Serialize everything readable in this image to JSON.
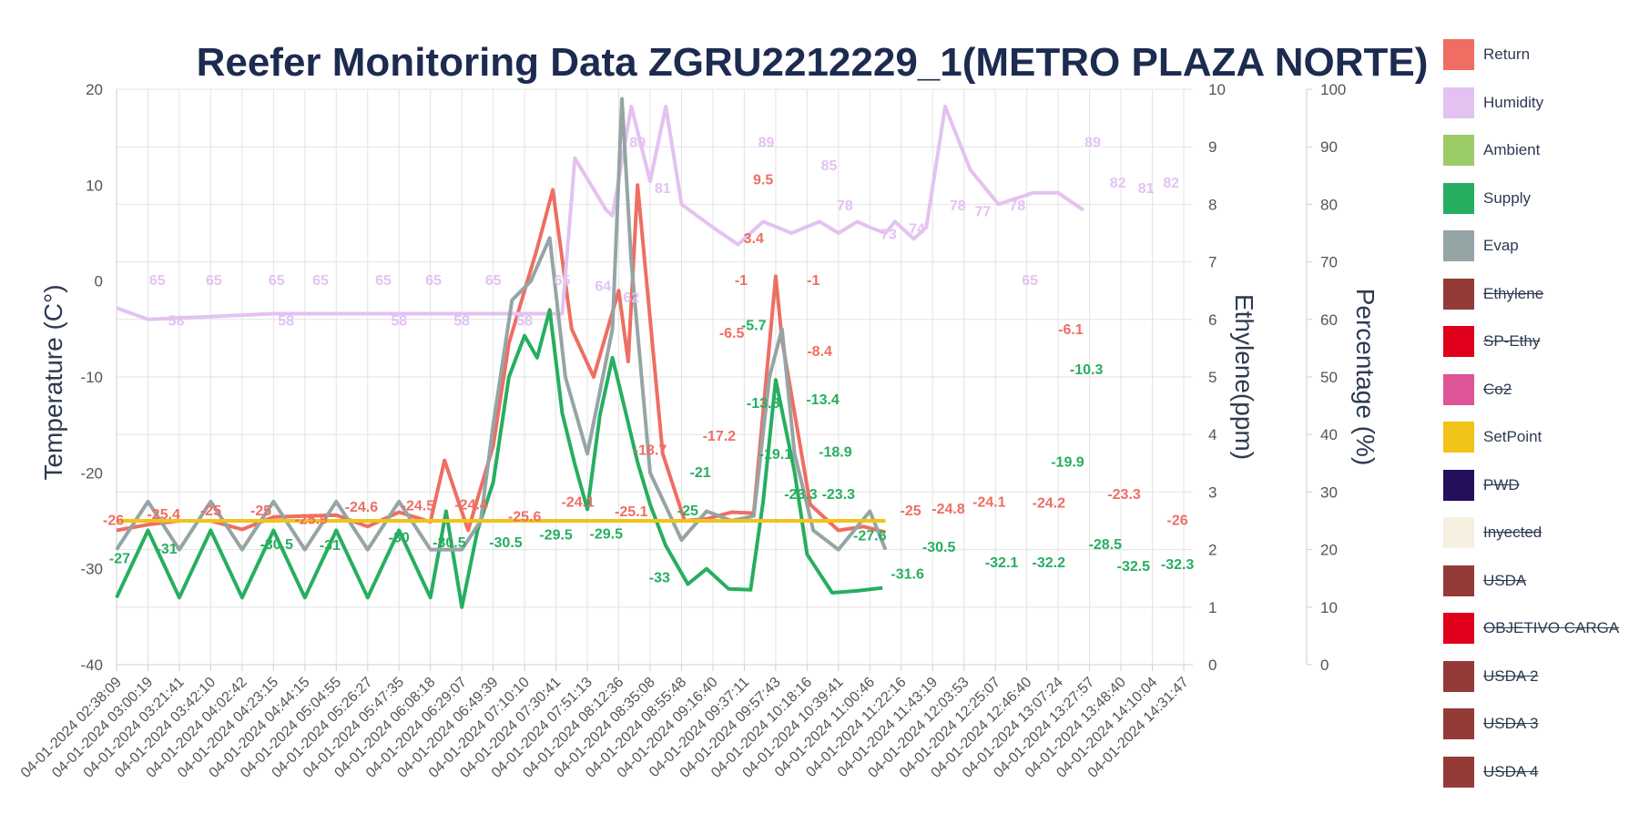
{
  "chart_data": {
    "type": "line",
    "title": "Reefer Monitoring Data ZGRU2212229_1(METRO PLAZA NORTE)",
    "y_left": {
      "label": "Temperature (C°)",
      "range": [
        -40,
        20
      ],
      "ticks": [
        "20",
        "10",
        "0",
        "-10",
        "-20",
        "-30",
        "-40"
      ]
    },
    "y_ethylene": {
      "label": "Ethylene(ppm)",
      "range": [
        0,
        10
      ],
      "ticks": [
        "10",
        "9",
        "8",
        "7",
        "6",
        "5",
        "4",
        "3",
        "2",
        "1",
        "0"
      ]
    },
    "y_percent": {
      "label": "Percentage (%)",
      "range": [
        0,
        100
      ],
      "ticks": [
        "100",
        "90",
        "80",
        "70",
        "60",
        "50",
        "40",
        "30",
        "20",
        "10",
        "0"
      ]
    },
    "x_ticks": [
      "04-01-2024 02:38:09",
      "04-01-2024 03:00:19",
      "04-01-2024 03:21:41",
      "04-01-2024 03:42:10",
      "04-01-2024 04:02:42",
      "04-01-2024 04:23:15",
      "04-01-2024 04:44:15",
      "04-01-2024 05:04:55",
      "04-01-2024 05:26:27",
      "04-01-2024 05:47:35",
      "04-01-2024 06:08:18",
      "04-01-2024 06:29:07",
      "04-01-2024 06:49:39",
      "04-01-2024 07:10:10",
      "04-01-2024 07:30:41",
      "04-01-2024 07:51:13",
      "04-01-2024 08:12:36",
      "04-01-2024 08:35:08",
      "04-01-2024 08:55:48",
      "04-01-2024 09:16:40",
      "04-01-2024 09:37:11",
      "04-01-2024 09:57:43",
      "04-01-2024 10:18:16",
      "04-01-2024 10:39:41",
      "04-01-2024 11:00:46",
      "04-01-2024 11:22:16",
      "04-01-2024 11:43:19",
      "04-01-2024 12:03:53",
      "04-01-2024 12:25:07",
      "04-01-2024 12:46:40",
      "04-01-2024 13:07:24",
      "04-01-2024 13:27:57",
      "04-01-2024 13:48:40",
      "04-01-2024 14:10:04",
      "04-01-2024 14:31:47"
    ],
    "grid": true,
    "legend_position": "right",
    "series": [
      {
        "name": "Return",
        "color": "#ee6e63",
        "axis": "temp",
        "points": [
          [
            0,
            -26
          ],
          [
            1,
            -25.4
          ],
          [
            2,
            -25
          ],
          [
            3,
            -25
          ],
          [
            4,
            -25.9
          ],
          [
            5,
            -24.6
          ],
          [
            6,
            -24.5
          ],
          [
            7,
            -24.4
          ],
          [
            8,
            -25.6
          ],
          [
            9,
            -24.1
          ],
          [
            10,
            -25.1
          ],
          [
            10.45,
            -18.7
          ],
          [
            11.2,
            -26
          ],
          [
            12,
            -17.2
          ],
          [
            12.5,
            -6.5
          ],
          [
            13,
            -1
          ],
          [
            13.4,
            3.4
          ],
          [
            13.9,
            9.5
          ],
          [
            14.5,
            -5
          ],
          [
            15.2,
            -10
          ],
          [
            16,
            -1
          ],
          [
            16.3,
            -8.4
          ],
          [
            16.6,
            10
          ],
          [
            17.4,
            -18
          ],
          [
            18.1,
            -25
          ],
          [
            18.8,
            -24.8
          ],
          [
            19.6,
            -24.1
          ],
          [
            20.3,
            -24.2
          ],
          [
            21,
            0.5
          ],
          [
            21.2,
            -6.1
          ],
          [
            22.1,
            -23.3
          ],
          [
            23,
            -26
          ],
          [
            23.8,
            -25.6
          ],
          [
            24.5,
            -26.2
          ]
        ],
        "labels": [
          [
            "-26",
            -0.1,
            -26
          ],
          [
            "-25.4",
            1.5,
            -25.4
          ],
          [
            "-25",
            3,
            -25
          ],
          [
            "-25",
            4.6,
            -25
          ],
          [
            "-25.9",
            6.2,
            -25.9
          ],
          [
            "-24.6",
            7.8,
            -24.6
          ],
          [
            "-24.5",
            9.6,
            -24.5
          ],
          [
            "-24.4",
            11.3,
            -24.4
          ],
          [
            "-25.6",
            13,
            -25.6
          ],
          [
            "-24.1",
            14.7,
            -24.1
          ],
          [
            "-25.1",
            16.4,
            -25.1
          ],
          [
            "-18.7",
            17,
            -18.7
          ],
          [
            "-17.2",
            19.2,
            -17.2
          ],
          [
            "-6.5",
            19.6,
            -6.5
          ],
          [
            "-1",
            19.9,
            -1
          ],
          [
            "3.4",
            20.3,
            3.4
          ],
          [
            "9.5",
            20.6,
            9.5
          ],
          [
            "-1",
            22.2,
            -1
          ],
          [
            "-8.4",
            22.4,
            -8.4
          ],
          [
            "-25",
            25.3,
            -25
          ],
          [
            "-24.8",
            26.5,
            -24.8
          ],
          [
            "-24.1",
            27.8,
            -24.1
          ],
          [
            "-24.2",
            29.7,
            -24.2
          ],
          [
            "-6.1",
            30.4,
            -6.1
          ],
          [
            "-23.3",
            32.1,
            -23.3
          ],
          [
            "-26",
            33.8,
            -26
          ]
        ]
      },
      {
        "name": "Humidity",
        "color": "#e3c2f2",
        "axis": "percent",
        "points": [
          [
            0,
            62
          ],
          [
            1,
            60
          ],
          [
            5,
            61
          ],
          [
            10,
            61
          ],
          [
            14.2,
            61
          ],
          [
            14.6,
            88
          ],
          [
            15.6,
            79
          ],
          [
            15.8,
            78
          ],
          [
            16.4,
            97
          ],
          [
            17,
            84
          ],
          [
            17.5,
            97
          ],
          [
            18,
            80
          ],
          [
            19,
            76
          ],
          [
            19.8,
            73
          ],
          [
            20.6,
            77
          ],
          [
            21.5,
            75
          ],
          [
            22.4,
            77
          ],
          [
            23,
            75
          ],
          [
            23.6,
            77
          ],
          [
            24,
            76
          ],
          [
            24.5,
            75
          ],
          [
            24.8,
            77
          ],
          [
            25.4,
            74
          ],
          [
            25.8,
            76
          ],
          [
            26.4,
            97
          ],
          [
            27.2,
            86
          ],
          [
            28.1,
            80
          ],
          [
            29.2,
            82
          ],
          [
            30,
            82
          ],
          [
            30.8,
            79
          ]
        ],
        "labels": [
          [
            "65",
            1.3,
            65
          ],
          [
            "58",
            1.9,
            58
          ],
          [
            "65",
            3.1,
            65
          ],
          [
            "65",
            5.1,
            65
          ],
          [
            "58",
            5.4,
            58
          ],
          [
            "65",
            6.5,
            65
          ],
          [
            "65",
            8.5,
            65
          ],
          [
            "58",
            9,
            58
          ],
          [
            "65",
            10.1,
            65
          ],
          [
            "58",
            11.0,
            58
          ],
          [
            "65",
            12.0,
            65
          ],
          [
            "58",
            13.0,
            58
          ],
          [
            "65",
            14.2,
            65
          ],
          [
            "64",
            15.5,
            64
          ],
          [
            "62",
            16.4,
            62
          ],
          [
            "89",
            16.6,
            89
          ],
          [
            "81",
            17.4,
            81
          ],
          [
            "89",
            20.7,
            89
          ],
          [
            "85",
            22.7,
            85
          ],
          [
            "78",
            23.2,
            78
          ],
          [
            "73",
            24.6,
            73
          ],
          [
            "74",
            25.5,
            74
          ],
          [
            "78",
            26.8,
            78
          ],
          [
            "77",
            27.6,
            77
          ],
          [
            "78",
            28.7,
            78
          ],
          [
            "65",
            29.1,
            65
          ],
          [
            "89",
            31.1,
            89
          ],
          [
            "82",
            31.9,
            82
          ],
          [
            "81",
            32.8,
            81
          ],
          [
            "82",
            33.6,
            82
          ]
        ]
      },
      {
        "name": "Ambient",
        "color": "#9ccc65",
        "axis": "temp",
        "points": []
      },
      {
        "name": "Supply",
        "color": "#27ae60",
        "axis": "temp",
        "points": [
          [
            0,
            -33
          ],
          [
            1,
            -26
          ],
          [
            2,
            -33
          ],
          [
            3,
            -26
          ],
          [
            4,
            -33
          ],
          [
            5,
            -26
          ],
          [
            6,
            -33
          ],
          [
            7,
            -26
          ],
          [
            8,
            -33
          ],
          [
            9,
            -26
          ],
          [
            10,
            -33
          ],
          [
            10.5,
            -24
          ],
          [
            11,
            -34
          ],
          [
            11.5,
            -26
          ],
          [
            12,
            -21
          ],
          [
            12.5,
            -10
          ],
          [
            13,
            -5.7
          ],
          [
            13.4,
            -8
          ],
          [
            13.8,
            -3
          ],
          [
            14.2,
            -13.8
          ],
          [
            14.6,
            -19.1
          ],
          [
            15,
            -23.8
          ],
          [
            15.4,
            -14
          ],
          [
            15.8,
            -8
          ],
          [
            16.2,
            -13.4
          ],
          [
            16.6,
            -18.9
          ],
          [
            17,
            -23.3
          ],
          [
            17.5,
            -27.6
          ],
          [
            18.2,
            -31.6
          ],
          [
            18.8,
            -30
          ],
          [
            19.5,
            -32.1
          ],
          [
            20.2,
            -32.2
          ],
          [
            20.6,
            -23
          ],
          [
            21,
            -10.3
          ],
          [
            21.6,
            -19.9
          ],
          [
            22,
            -28.5
          ],
          [
            22.8,
            -32.5
          ],
          [
            23.6,
            -32.3
          ],
          [
            24.4,
            -32
          ]
        ],
        "labels": [
          [
            "-27",
            0.1,
            -30
          ],
          [
            "-31",
            1.6,
            -29
          ],
          [
            "-30.5",
            5.1,
            -28.5
          ],
          [
            "-31",
            6.8,
            -28.6
          ],
          [
            "-30",
            9.0,
            -27.8
          ],
          [
            "-30.5",
            10.6,
            -28.3
          ],
          [
            "-30.5",
            12.4,
            -28.3
          ],
          [
            "-29.5",
            14.0,
            -27.5
          ],
          [
            "-29.5",
            15.6,
            -27.4
          ],
          [
            "-33",
            17.3,
            -32
          ],
          [
            "-25",
            18.2,
            -25
          ],
          [
            "-21",
            18.6,
            -21
          ],
          [
            "-5.7",
            20.3,
            -5.7
          ],
          [
            "-13.8",
            20.6,
            -13.8
          ],
          [
            "-19.1",
            21.0,
            -19.1
          ],
          [
            "-23.3",
            21.8,
            -23.3
          ],
          [
            "-13.4",
            22.5,
            -13.4
          ],
          [
            "-18.9",
            22.9,
            -18.9
          ],
          [
            "-23.3",
            23.0,
            -23.3
          ],
          [
            "-27.6",
            24.0,
            -27.6
          ],
          [
            "-31.6",
            25.2,
            -31.6
          ],
          [
            "-30.5",
            26.2,
            -28.8
          ],
          [
            "-32.1",
            28.2,
            -30.4
          ],
          [
            "-32.2",
            29.7,
            -30.4
          ],
          [
            "-10.3",
            30.9,
            -10.3
          ],
          [
            "-19.9",
            30.3,
            -19.9
          ],
          [
            "-28.5",
            31.5,
            -28.5
          ],
          [
            "-32.5",
            32.4,
            -30.8
          ],
          [
            "-32.3",
            33.8,
            -30.6
          ]
        ]
      },
      {
        "name": "Evap",
        "color": "#95a5a6",
        "axis": "temp",
        "points": [
          [
            0,
            -28
          ],
          [
            1,
            -23
          ],
          [
            2,
            -28
          ],
          [
            3,
            -23
          ],
          [
            4,
            -28
          ],
          [
            5,
            -23
          ],
          [
            6,
            -28
          ],
          [
            7,
            -23
          ],
          [
            8,
            -28
          ],
          [
            9,
            -23
          ],
          [
            10,
            -28
          ],
          [
            11,
            -28
          ],
          [
            11.6,
            -25
          ],
          [
            12,
            -15
          ],
          [
            12.6,
            -2
          ],
          [
            13.2,
            0
          ],
          [
            13.8,
            4.5
          ],
          [
            14.3,
            -10
          ],
          [
            15,
            -18
          ],
          [
            15.8,
            -5
          ],
          [
            16.1,
            19
          ],
          [
            16.4,
            2
          ],
          [
            17,
            -20
          ],
          [
            18,
            -27
          ],
          [
            18.8,
            -24
          ],
          [
            19.6,
            -25
          ],
          [
            20.3,
            -24.5
          ],
          [
            20.8,
            -10
          ],
          [
            21.2,
            -5
          ],
          [
            21.6,
            -18
          ],
          [
            22.2,
            -26
          ],
          [
            23,
            -28
          ],
          [
            24,
            -24
          ],
          [
            24.5,
            -28
          ]
        ],
        "labels": []
      },
      {
        "name": "Ethylene",
        "color": "#943b38",
        "axis": "ethylene",
        "off": true,
        "points": []
      },
      {
        "name": "SP-Ethy",
        "color": "#e0001b",
        "axis": "ethylene",
        "off": true,
        "points": []
      },
      {
        "name": "Co2",
        "color": "#dd5497",
        "axis": "percent",
        "off": true,
        "points": []
      },
      {
        "name": "SetPoint",
        "color": "#f2c318",
        "axis": "temp",
        "points": [
          [
            0,
            -25
          ],
          [
            24.5,
            -25
          ]
        ],
        "labels": []
      },
      {
        "name": "PWD",
        "color": "#240f5c",
        "axis": "percent",
        "off": true,
        "points": []
      },
      {
        "name": "Inyected",
        "color": "#f6f0e1",
        "axis": "percent",
        "off": true,
        "points": []
      },
      {
        "name": "USDA",
        "color": "#943b38",
        "axis": "temp",
        "off": true,
        "points": []
      },
      {
        "name": "OBJETIVO CARGA",
        "color": "#e0001b",
        "axis": "temp",
        "off": true,
        "points": []
      },
      {
        "name": "USDA 2",
        "color": "#943b38",
        "axis": "temp",
        "off": true,
        "points": []
      },
      {
        "name": "USDA 3",
        "color": "#943b38",
        "axis": "temp",
        "off": true,
        "points": []
      },
      {
        "name": "USDA 4",
        "color": "#943b38",
        "axis": "temp",
        "off": true,
        "points": []
      }
    ]
  }
}
